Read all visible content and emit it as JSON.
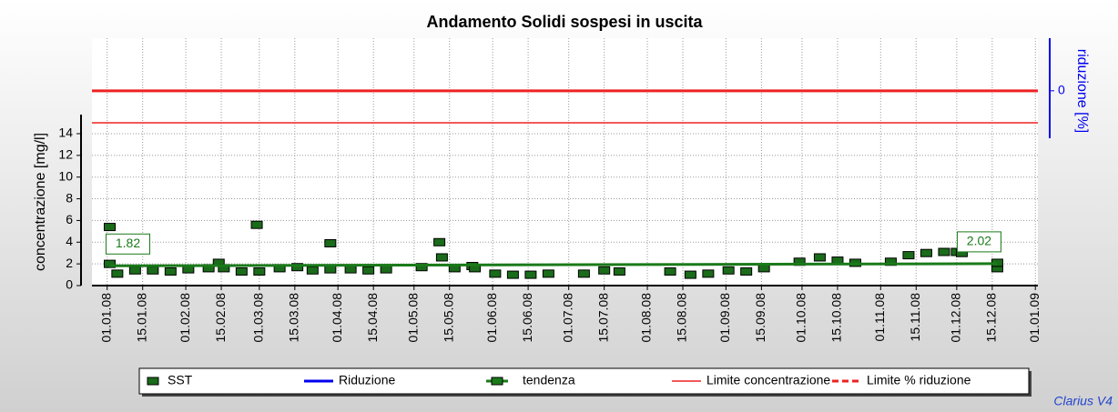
{
  "chart_data": {
    "type": "scatter",
    "title": "Andamento Solidi sospesi in uscita",
    "y_label": "concentrazione [mg/l]",
    "y2_label": "riduzione [%]",
    "footer": "Clarius V4",
    "xlim": [
      "2007-12-26",
      "2009-01-02"
    ],
    "xticks": [
      {
        "value": "2008-01-01",
        "label": "01.01.08"
      },
      {
        "value": "2008-01-15",
        "label": "15.01.08"
      },
      {
        "value": "2008-02-01",
        "label": "01.02.08"
      },
      {
        "value": "2008-02-15",
        "label": "15.02.08"
      },
      {
        "value": "2008-03-01",
        "label": "01.03.08"
      },
      {
        "value": "2008-03-15",
        "label": "15.03.08"
      },
      {
        "value": "2008-04-01",
        "label": "01.04.08"
      },
      {
        "value": "2008-04-15",
        "label": "15.04.08"
      },
      {
        "value": "2008-05-01",
        "label": "01.05.08"
      },
      {
        "value": "2008-05-15",
        "label": "15.05.08"
      },
      {
        "value": "2008-06-01",
        "label": "01.06.08"
      },
      {
        "value": "2008-06-15",
        "label": "15.06.08"
      },
      {
        "value": "2008-07-01",
        "label": "01.07.08"
      },
      {
        "value": "2008-07-15",
        "label": "15.07.08"
      },
      {
        "value": "2008-08-01",
        "label": "01.08.08"
      },
      {
        "value": "2008-08-15",
        "label": "15.08.08"
      },
      {
        "value": "2008-09-01",
        "label": "01.09.08"
      },
      {
        "value": "2008-09-15",
        "label": "15.09.08"
      },
      {
        "value": "2008-10-01",
        "label": "01.10.08"
      },
      {
        "value": "2008-10-15",
        "label": "15.10.08"
      },
      {
        "value": "2008-11-01",
        "label": "01.11.08"
      },
      {
        "value": "2008-11-15",
        "label": "15.11.08"
      },
      {
        "value": "2008-12-01",
        "label": "01.12.08"
      },
      {
        "value": "2008-12-15",
        "label": "15.12.08"
      },
      {
        "value": "2009-01-01",
        "label": "01.01.09"
      }
    ],
    "ylim": [
      0,
      22.8
    ],
    "yticks": [
      0,
      2,
      4,
      6,
      8,
      10,
      12,
      14
    ],
    "y2lim": [
      -100,
      27
    ],
    "y2ticks": [
      0
    ],
    "grid": true,
    "series": [
      {
        "name": "SST",
        "color": "#1a6b1a",
        "x": [
          "2008-01-02",
          "2008-01-02",
          "2008-01-05",
          "2008-01-12",
          "2008-01-19",
          "2008-01-26",
          "2008-02-02",
          "2008-02-10",
          "2008-02-14",
          "2008-02-16",
          "2008-02-23",
          "2008-02-29",
          "2008-03-01",
          "2008-03-09",
          "2008-03-16",
          "2008-03-22",
          "2008-03-29",
          "2008-03-29",
          "2008-04-06",
          "2008-04-13",
          "2008-04-20",
          "2008-05-04",
          "2008-05-11",
          "2008-05-12",
          "2008-05-17",
          "2008-05-24",
          "2008-05-25",
          "2008-06-02",
          "2008-06-09",
          "2008-06-16",
          "2008-06-23",
          "2008-07-07",
          "2008-07-15",
          "2008-07-21",
          "2008-08-10",
          "2008-08-18",
          "2008-08-25",
          "2008-09-02",
          "2008-09-09",
          "2008-09-16",
          "2008-09-30",
          "2008-10-08",
          "2008-10-15",
          "2008-10-22",
          "2008-11-05",
          "2008-11-12",
          "2008-11-19",
          "2008-11-26",
          "2008-12-01",
          "2008-12-03",
          "2008-12-17",
          "2008-12-17"
        ],
        "values": [
          5.4,
          2.0,
          1.1,
          1.4,
          1.4,
          1.3,
          1.5,
          1.6,
          2.1,
          1.6,
          1.3,
          5.6,
          1.3,
          1.6,
          1.7,
          1.4,
          3.9,
          1.5,
          1.5,
          1.4,
          1.5,
          1.7,
          4.0,
          2.6,
          1.6,
          1.8,
          1.6,
          1.1,
          1.0,
          1.0,
          1.1,
          1.1,
          1.4,
          1.3,
          1.3,
          1.0,
          1.1,
          1.4,
          1.3,
          1.6,
          2.2,
          2.6,
          2.3,
          2.1,
          2.2,
          2.8,
          3.0,
          3.1,
          3.1,
          3.0,
          1.6,
          2.1
        ]
      },
      {
        "name": "Riduzione",
        "color": "#0000ee"
      },
      {
        "name": "tendenza",
        "color": "#1a7a1a",
        "x": [
          "2008-01-02",
          "2008-12-17"
        ],
        "values": [
          1.82,
          2.02
        ]
      },
      {
        "name": "Limite concentrazione",
        "color": "#ee2222",
        "value": 15
      },
      {
        "name": "Limite % riduzione",
        "color": "#ee2222",
        "value": 0,
        "axis": "y2"
      }
    ]
  }
}
